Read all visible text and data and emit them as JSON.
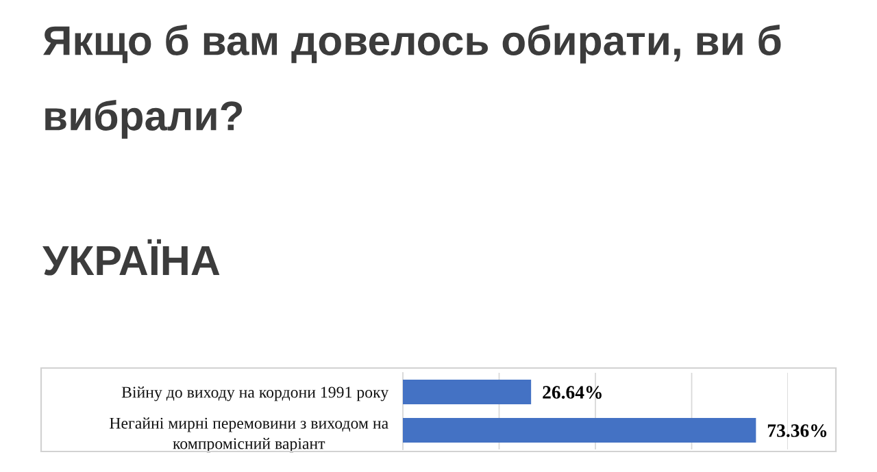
{
  "chart_data": {
    "type": "bar",
    "orientation": "horizontal",
    "title": "Якщо б вам довелось обирати, ви б вибрали?",
    "subtitle": "УКРАЇНА",
    "categories": [
      "Війну до виходу на кордони 1991 року",
      "Негайні мирні перемовини з виходом на компромісний варіант"
    ],
    "values": [
      26.64,
      73.36
    ],
    "color": "#4472c4",
    "value_labels": [
      "26.64%",
      "73.36%"
    ],
    "xlim": [
      0,
      80
    ],
    "xticks": [
      {
        "value": 0,
        "label": null
      },
      {
        "value": 20,
        "label": null
      },
      {
        "value": 40,
        "label": null
      },
      {
        "value": 60,
        "label": null
      },
      {
        "value": 80,
        "label": null
      }
    ],
    "grid": "x",
    "tick_labels": "y"
  }
}
